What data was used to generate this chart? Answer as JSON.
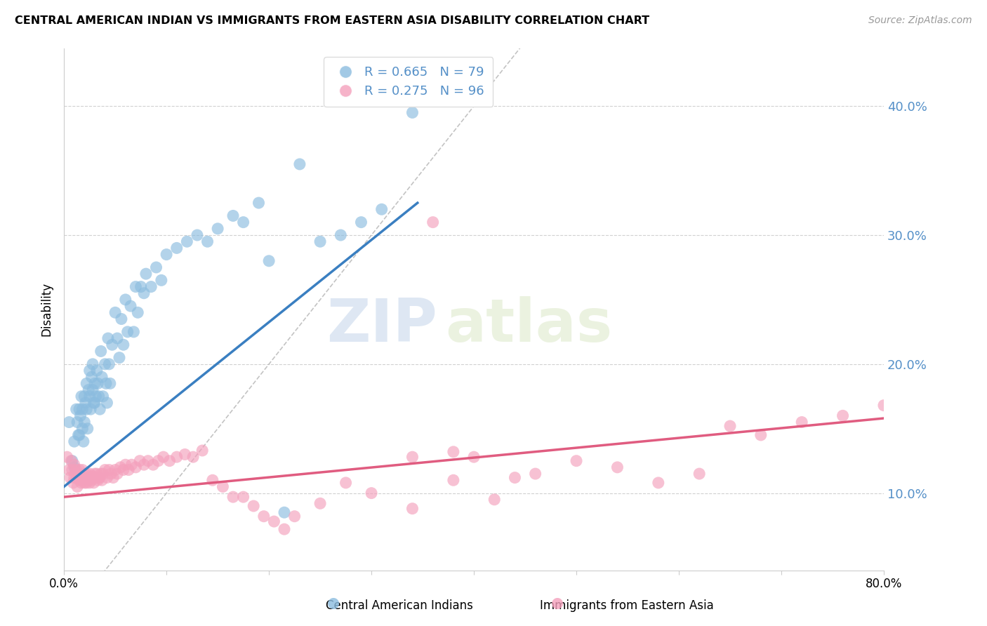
{
  "title": "CENTRAL AMERICAN INDIAN VS IMMIGRANTS FROM EASTERN ASIA DISABILITY CORRELATION CHART",
  "source": "Source: ZipAtlas.com",
  "ylabel": "Disability",
  "ytick_labels": [
    "10.0%",
    "20.0%",
    "30.0%",
    "40.0%"
  ],
  "ytick_values": [
    0.1,
    0.2,
    0.3,
    0.4
  ],
  "xlim": [
    0.0,
    0.8
  ],
  "ylim": [
    0.04,
    0.445
  ],
  "blue_color": "#8bbcdf",
  "pink_color": "#f4a0bc",
  "blue_line_color": "#3a7fc1",
  "pink_line_color": "#e05c80",
  "right_axis_color": "#5590c8",
  "legend_blue_R": "R = 0.665",
  "legend_blue_N": "N = 79",
  "legend_pink_R": "R = 0.275",
  "legend_pink_N": "N = 96",
  "watermark_zip": "ZIP",
  "watermark_atlas": "atlas",
  "blue_scatter_x": [
    0.005,
    0.008,
    0.01,
    0.01,
    0.012,
    0.013,
    0.014,
    0.015,
    0.015,
    0.016,
    0.017,
    0.018,
    0.018,
    0.019,
    0.02,
    0.02,
    0.021,
    0.022,
    0.022,
    0.023,
    0.024,
    0.025,
    0.025,
    0.026,
    0.027,
    0.028,
    0.028,
    0.029,
    0.03,
    0.03,
    0.031,
    0.032,
    0.033,
    0.034,
    0.035,
    0.036,
    0.037,
    0.038,
    0.04,
    0.041,
    0.042,
    0.043,
    0.044,
    0.045,
    0.047,
    0.05,
    0.052,
    0.054,
    0.056,
    0.058,
    0.06,
    0.062,
    0.065,
    0.068,
    0.07,
    0.072,
    0.075,
    0.078,
    0.08,
    0.085,
    0.09,
    0.095,
    0.1,
    0.11,
    0.12,
    0.13,
    0.14,
    0.15,
    0.165,
    0.175,
    0.19,
    0.2,
    0.215,
    0.23,
    0.25,
    0.27,
    0.29,
    0.31,
    0.34
  ],
  "blue_scatter_y": [
    0.155,
    0.125,
    0.14,
    0.12,
    0.165,
    0.155,
    0.145,
    0.165,
    0.145,
    0.16,
    0.175,
    0.165,
    0.15,
    0.14,
    0.175,
    0.155,
    0.17,
    0.185,
    0.165,
    0.15,
    0.18,
    0.195,
    0.175,
    0.165,
    0.19,
    0.18,
    0.2,
    0.17,
    0.185,
    0.17,
    0.175,
    0.195,
    0.185,
    0.175,
    0.165,
    0.21,
    0.19,
    0.175,
    0.2,
    0.185,
    0.17,
    0.22,
    0.2,
    0.185,
    0.215,
    0.24,
    0.22,
    0.205,
    0.235,
    0.215,
    0.25,
    0.225,
    0.245,
    0.225,
    0.26,
    0.24,
    0.26,
    0.255,
    0.27,
    0.26,
    0.275,
    0.265,
    0.285,
    0.29,
    0.295,
    0.3,
    0.295,
    0.305,
    0.315,
    0.31,
    0.325,
    0.28,
    0.085,
    0.355,
    0.295,
    0.3,
    0.31,
    0.32,
    0.395
  ],
  "pink_scatter_x": [
    0.003,
    0.005,
    0.006,
    0.007,
    0.008,
    0.009,
    0.01,
    0.01,
    0.011,
    0.012,
    0.013,
    0.013,
    0.014,
    0.015,
    0.015,
    0.016,
    0.017,
    0.018,
    0.018,
    0.019,
    0.02,
    0.02,
    0.021,
    0.022,
    0.022,
    0.023,
    0.024,
    0.025,
    0.025,
    0.026,
    0.027,
    0.028,
    0.029,
    0.03,
    0.031,
    0.032,
    0.033,
    0.034,
    0.035,
    0.036,
    0.037,
    0.038,
    0.04,
    0.042,
    0.044,
    0.046,
    0.048,
    0.05,
    0.052,
    0.055,
    0.058,
    0.06,
    0.063,
    0.066,
    0.07,
    0.074,
    0.078,
    0.082,
    0.087,
    0.092,
    0.097,
    0.103,
    0.11,
    0.118,
    0.126,
    0.135,
    0.145,
    0.155,
    0.165,
    0.175,
    0.185,
    0.195,
    0.205,
    0.215,
    0.225,
    0.25,
    0.275,
    0.3,
    0.34,
    0.38,
    0.42,
    0.46,
    0.5,
    0.54,
    0.58,
    0.62,
    0.65,
    0.68,
    0.72,
    0.76,
    0.8,
    0.36,
    0.4,
    0.44,
    0.34,
    0.38
  ],
  "pink_scatter_y": [
    0.128,
    0.118,
    0.112,
    0.125,
    0.118,
    0.108,
    0.122,
    0.112,
    0.115,
    0.118,
    0.112,
    0.105,
    0.115,
    0.118,
    0.11,
    0.112,
    0.108,
    0.118,
    0.11,
    0.112,
    0.115,
    0.108,
    0.112,
    0.115,
    0.108,
    0.112,
    0.11,
    0.115,
    0.108,
    0.112,
    0.11,
    0.113,
    0.108,
    0.115,
    0.112,
    0.115,
    0.11,
    0.112,
    0.112,
    0.115,
    0.11,
    0.115,
    0.118,
    0.112,
    0.118,
    0.115,
    0.112,
    0.118,
    0.115,
    0.12,
    0.118,
    0.122,
    0.118,
    0.122,
    0.12,
    0.125,
    0.122,
    0.125,
    0.122,
    0.125,
    0.128,
    0.125,
    0.128,
    0.13,
    0.128,
    0.133,
    0.11,
    0.105,
    0.097,
    0.097,
    0.09,
    0.082,
    0.078,
    0.072,
    0.082,
    0.092,
    0.108,
    0.1,
    0.088,
    0.11,
    0.095,
    0.115,
    0.125,
    0.12,
    0.108,
    0.115,
    0.152,
    0.145,
    0.155,
    0.16,
    0.168,
    0.31,
    0.128,
    0.112,
    0.128,
    0.132
  ]
}
